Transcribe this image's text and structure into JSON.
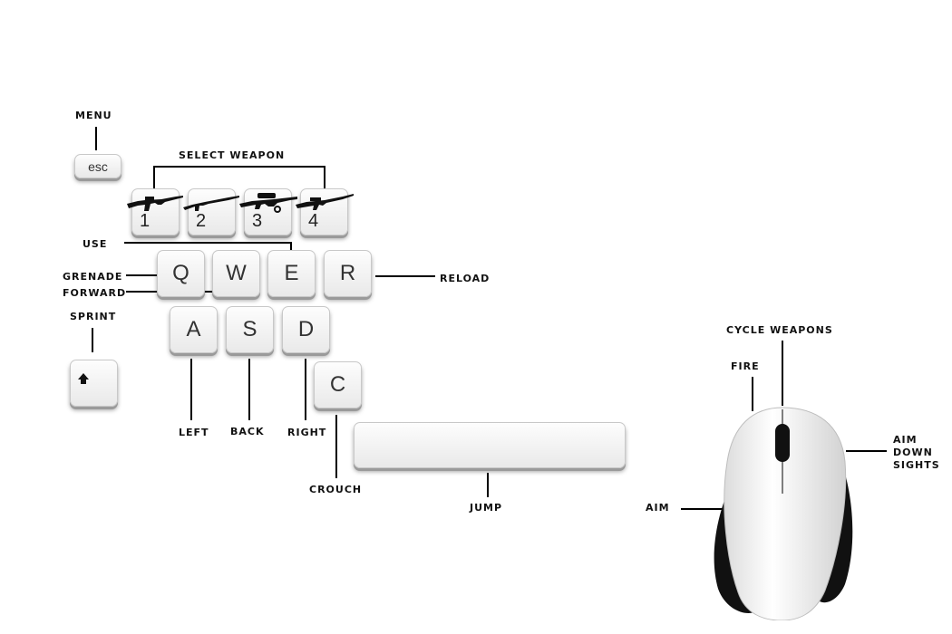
{
  "labels": {
    "menu": "MENU",
    "select_weapon": "SELECT WEAPON",
    "use": "USE",
    "grenade": "GRENADE",
    "forward": "FORWARD",
    "reload": "RELOAD",
    "sprint": "SPRINT",
    "left": "LEFT",
    "back": "BACK",
    "right": "RIGHT",
    "crouch": "CROUCH",
    "jump": "JUMP",
    "cycle_weapons": "CYCLE WEAPONS",
    "fire": "FIRE",
    "aim": "AIM",
    "aim_down_sights": [
      "AIM",
      "DOWN",
      "SIGHTS"
    ]
  },
  "keys": {
    "esc": "esc",
    "weapon_1": "1",
    "weapon_2": "2",
    "weapon_3": "3",
    "weapon_4": "4",
    "q": "Q",
    "w": "W",
    "e": "E",
    "r": "R",
    "a": "A",
    "s": "S",
    "d": "D",
    "c": "C"
  },
  "icons": {
    "shift": "shift-arrow-icon",
    "weapon_1": "assault-rifle-icon",
    "weapon_2": "shotgun-icon",
    "weapon_3": "sniper-rifle-icon",
    "weapon_4": "rifle-icon",
    "mouse": "mouse-icon"
  }
}
